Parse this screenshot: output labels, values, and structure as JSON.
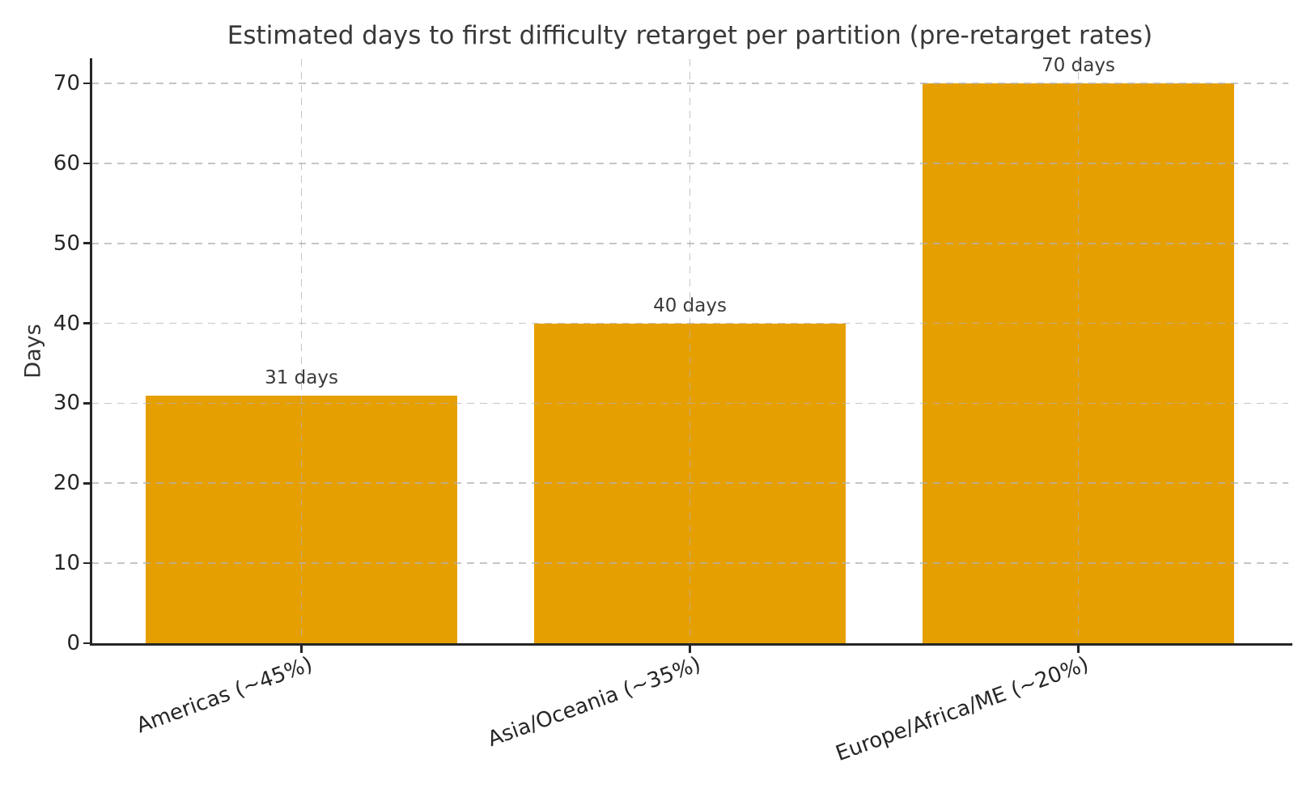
{
  "chart_data": {
    "type": "bar",
    "title": "Estimated days to first difficulty retarget per partition (pre-retarget rates)",
    "xlabel": "",
    "ylabel": "Days",
    "categories": [
      "Americas (~45%)",
      "Asia/Oceania (~35%)",
      "Europe/Africa/ME (~20%)"
    ],
    "values": [
      31,
      40,
      70
    ],
    "bar_value_labels": [
      "31 days",
      "40 days",
      "70 days"
    ],
    "yticks": [
      0,
      10,
      20,
      30,
      40,
      50,
      60,
      70
    ],
    "ylim": [
      0,
      73
    ],
    "legend": "none",
    "grid": {
      "visible": true,
      "style": "dashed",
      "axes": "both",
      "drawn_over_bars": true
    },
    "colors": {
      "bar": "#E69F00",
      "background": "#ffffff",
      "title_text": "#383838",
      "tick_text": "#262626",
      "axis_spine": "#262626",
      "gridline": "#b2b2b2"
    }
  }
}
